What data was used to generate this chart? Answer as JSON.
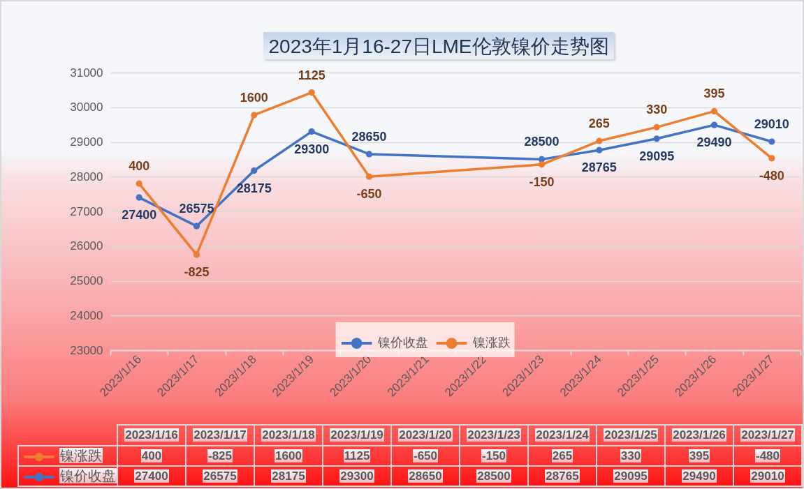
{
  "chart_data": {
    "type": "line",
    "title": "2023年1月16-27日LME伦敦镍价走势图",
    "x": [
      "2023-01-16",
      "2023-01-17",
      "2023-01-18",
      "2023-01-19",
      "2023-01-20",
      "2023-01-23",
      "2023-01-24",
      "2023-01-25",
      "2023-01-26",
      "2023-01-27"
    ],
    "series": [
      {
        "name": "镍价收盘",
        "color": "#4472c4",
        "values": [
          27400,
          26575,
          28175,
          29300,
          28650,
          28500,
          28765,
          29095,
          29490,
          29010
        ],
        "value_labels": [
          "27400",
          "26575",
          "28175",
          "29300",
          "28650",
          "28500",
          "28765",
          "29095",
          "29490",
          "29010"
        ]
      },
      {
        "name": "镍涨跌",
        "color": "#ed7d31",
        "values": [
          27800,
          25750,
          29775,
          30425,
          28000,
          28350,
          29030,
          29425,
          29885,
          28530
        ]
      }
    ],
    "annotations": [
      {
        "text": "400",
        "x": "2023-01-16",
        "y": 27800
      },
      {
        "text": "-825",
        "x": "2023-01-17",
        "y": 25750
      },
      {
        "text": "1600",
        "x": "2023-01-18",
        "y": 29775
      },
      {
        "text": "1125",
        "x": "2023-01-19",
        "y": 30425
      },
      {
        "text": "-650",
        "x": "2023-01-20",
        "y": 28000
      },
      {
        "text": "-150",
        "x": "2023-01-23",
        "y": 28350
      },
      {
        "text": "265",
        "x": "2023-01-24",
        "y": 29030
      },
      {
        "text": "330",
        "x": "2023-01-25",
        "y": 29425
      },
      {
        "text": "395",
        "x": "2023-01-26",
        "y": 29885
      },
      {
        "text": "-480",
        "x": "2023-01-27",
        "y": 28530
      }
    ],
    "xlim": [
      "2023-01-15T12:00",
      "2023-01-27T12:00"
    ],
    "xticks": [
      {
        "value": "2023-01-15T12:00",
        "label": null
      },
      {
        "value": "2023-01-16",
        "label": "2023/1/16"
      },
      {
        "value": "2023-01-16T12:00",
        "label": null
      },
      {
        "value": "2023-01-17",
        "label": "2023/1/17"
      },
      {
        "value": "2023-01-17T12:00",
        "label": null
      },
      {
        "value": "2023-01-18",
        "label": "2023/1/18"
      },
      {
        "value": "2023-01-18T12:00",
        "label": null
      },
      {
        "value": "2023-01-19",
        "label": "2023/1/19"
      },
      {
        "value": "2023-01-19T12:00",
        "label": null
      },
      {
        "value": "2023-01-20",
        "label": "2023/1/20"
      },
      {
        "value": "2023-01-20T12:00",
        "label": null
      },
      {
        "value": "2023-01-21",
        "label": "2023/1/21"
      },
      {
        "value": "2023-01-21T12:00",
        "label": null
      },
      {
        "value": "2023-01-22",
        "label": "2023/1/22"
      },
      {
        "value": "2023-01-22T12:00",
        "label": null
      },
      {
        "value": "2023-01-23",
        "label": "2023/1/23"
      },
      {
        "value": "2023-01-23T12:00",
        "label": null
      },
      {
        "value": "2023-01-24",
        "label": "2023/1/24"
      },
      {
        "value": "2023-01-24T12:00",
        "label": null
      },
      {
        "value": "2023-01-25",
        "label": "2023/1/25"
      },
      {
        "value": "2023-01-25T12:00",
        "label": null
      },
      {
        "value": "2023-01-26",
        "label": "2023/1/26"
      },
      {
        "value": "2023-01-26T12:00",
        "label": null
      },
      {
        "value": "2023-01-27",
        "label": "2023/1/27"
      },
      {
        "value": "2023-01-27T12:00",
        "label": null
      }
    ],
    "ylim": [
      23000,
      31000
    ],
    "yticks": [
      23000,
      24000,
      25000,
      26000,
      27000,
      28000,
      29000,
      30000,
      31000
    ],
    "grid": "y",
    "legend": "bottom",
    "marker": "circle",
    "line_style": "solid"
  }
}
